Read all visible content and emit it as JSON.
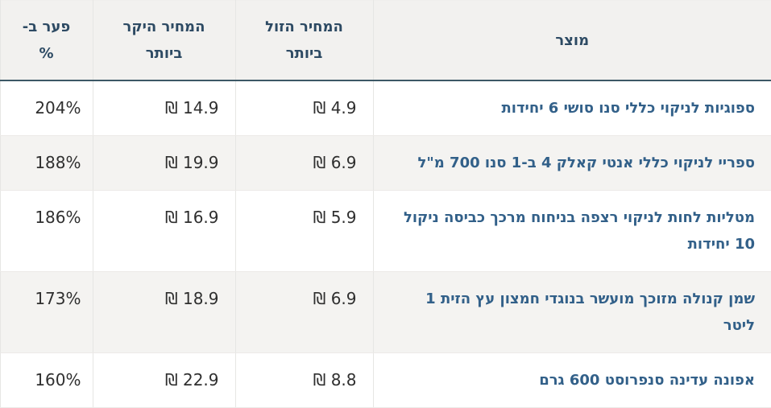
{
  "table": {
    "title": "price-comparison-table",
    "columns": [
      {
        "key": "product",
        "label": "מוצר"
      },
      {
        "key": "cheapest",
        "label": "המחיר הזול\nביותר"
      },
      {
        "key": "expensive",
        "label": "המחיר היקר\nביותר"
      },
      {
        "key": "gap",
        "label": "פער ב-\n%"
      }
    ],
    "currency_symbol": "₪",
    "rows": [
      {
        "product": "ספוגיות לניקוי כללי סנו סושי 6 יחידות",
        "cheapest": "4.9 ₪",
        "expensive": "14.9 ₪",
        "gap": "204%"
      },
      {
        "product": "ספריי לניקוי כללי אנטי קאלק 4 ב-1 סנו 700 מ\"ל",
        "cheapest": "6.9 ₪",
        "expensive": "19.9 ₪",
        "gap": "188%"
      },
      {
        "product": "מטליות לחות לניקוי רצפה בניחוח מרכך כביסה ניקול 10 יחידות",
        "cheapest": "5.9 ₪",
        "expensive": "16.9 ₪",
        "gap": "186%"
      },
      {
        "product": "שמן קנולה מזוכך מועשר בנוגדי חמצון עץ הזית 1 ליטר",
        "cheapest": "6.9 ₪",
        "expensive": "18.9 ₪",
        "gap": "173%"
      },
      {
        "product": "אפונה עדינה סנפרוסט 600 גרם",
        "cheapest": "8.8 ₪",
        "expensive": "22.9 ₪",
        "gap": "160%"
      }
    ]
  },
  "colors": {
    "page_bg": "#ffffff",
    "header_bg": "#f2f1ef",
    "stripe_bg": "#f4f3f1",
    "header_text": "#2d4a63",
    "product_text": "#326089",
    "number_text": "#2f2f2f",
    "divider": "#e6e6e4",
    "row_divider": "#eceae8",
    "header_border": "#3c5866"
  }
}
